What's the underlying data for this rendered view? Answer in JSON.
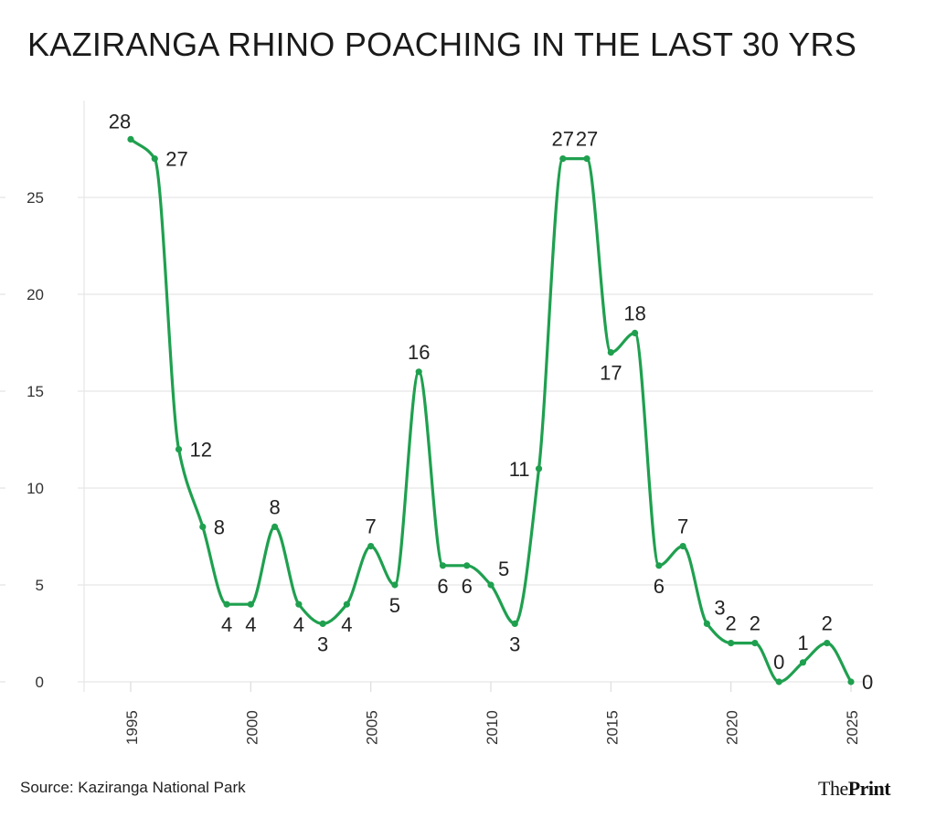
{
  "title": "KAZIRANGA RHINO POACHING IN THE LAST 30 YRS",
  "source": "Source: Kaziranga National Park",
  "logo": {
    "the": "The",
    "print": "Print"
  },
  "chart_data": {
    "type": "line",
    "title": "KAZIRANGA RHINO POACHING IN THE LAST 30 YRS",
    "xlabel": "",
    "ylabel": "",
    "x": [
      1995,
      1996,
      1997,
      1998,
      1999,
      2000,
      2001,
      2002,
      2003,
      2004,
      2005,
      2006,
      2007,
      2008,
      2009,
      2010,
      2011,
      2012,
      2013,
      2014,
      2015,
      2016,
      2017,
      2018,
      2019,
      2020,
      2021,
      2022,
      2023,
      2024,
      2025
    ],
    "values": [
      28,
      27,
      12,
      8,
      4,
      4,
      8,
      4,
      3,
      4,
      7,
      5,
      16,
      6,
      6,
      5,
      3,
      11,
      27,
      27,
      17,
      18,
      6,
      7,
      3,
      2,
      2,
      0,
      1,
      2,
      0
    ],
    "xticks": [
      "1995",
      "2000",
      "2005",
      "2010",
      "2015",
      "2020",
      "2025"
    ],
    "yticks": [
      "0",
      "5",
      "10",
      "15",
      "20",
      "25"
    ],
    "ylim": [
      0,
      28
    ],
    "xlim": [
      1995,
      2025
    ],
    "grid": true,
    "smooth": true,
    "data_labels": true,
    "line_color": "#1fa04f"
  }
}
